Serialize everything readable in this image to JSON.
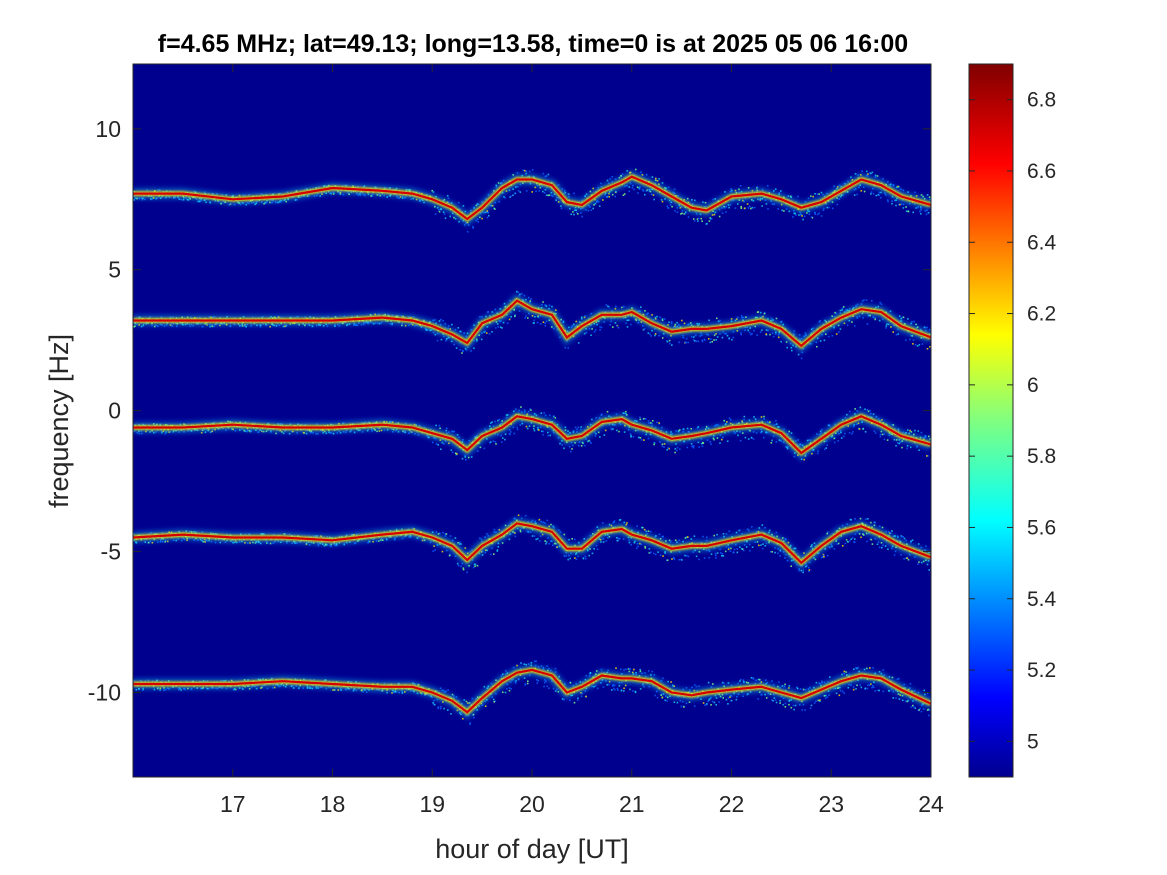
{
  "chart_data": {
    "type": "heatmap",
    "title": "f=4.65 MHz;  lat=49.13; long=13.58, time=0 is at 2025 05 06 16:00",
    "xlabel": "hour of day [UT]",
    "ylabel": "frequency [Hz]",
    "xlim": [
      16,
      24
    ],
    "ylim": [
      -13,
      12.3
    ],
    "x_ticks": [
      17,
      18,
      19,
      20,
      21,
      22,
      23,
      24
    ],
    "x_tick_labels": [
      "17",
      "18",
      "19",
      "20",
      "21",
      "22",
      "23",
      "24"
    ],
    "y_ticks": [
      10,
      5,
      0,
      -5,
      -10
    ],
    "y_tick_labels": [
      "10",
      "5",
      "0",
      "-5",
      "-10"
    ],
    "colormap": "jet",
    "colorbar": {
      "range": [
        4.9,
        6.9
      ],
      "ticks": [
        6.8,
        6.6,
        6.4,
        6.2,
        6,
        5.8,
        5.6,
        5.4,
        5.2,
        5
      ],
      "tick_labels": [
        "6.8",
        "6.6",
        "6.4",
        "6.2",
        "6",
        "5.8",
        "5.6",
        "5.4",
        "5.2",
        "5"
      ],
      "placement": "right"
    },
    "background_level": 4.9,
    "traces": [
      {
        "offset": 7.7,
        "x": [
          16.0,
          16.5,
          17.0,
          17.5,
          18.0,
          18.5,
          18.8,
          19.0,
          19.2,
          19.35,
          19.5,
          19.7,
          19.85,
          20.0,
          20.2,
          20.35,
          20.5,
          20.7,
          20.9,
          21.0,
          21.2,
          21.4,
          21.6,
          21.75,
          22.0,
          22.3,
          22.5,
          22.7,
          22.9,
          23.1,
          23.3,
          23.5,
          23.7,
          24.0
        ],
        "y": [
          7.7,
          7.7,
          7.5,
          7.6,
          7.9,
          7.8,
          7.7,
          7.5,
          7.2,
          6.8,
          7.2,
          7.9,
          8.2,
          8.2,
          8.0,
          7.4,
          7.3,
          7.8,
          8.1,
          8.3,
          8.0,
          7.6,
          7.2,
          7.1,
          7.6,
          7.7,
          7.5,
          7.2,
          7.4,
          7.8,
          8.2,
          8.0,
          7.6,
          7.3
        ]
      },
      {
        "offset": 3.3,
        "x": [
          16.0,
          16.5,
          17.0,
          17.5,
          18.0,
          18.5,
          18.8,
          19.0,
          19.2,
          19.35,
          19.5,
          19.7,
          19.85,
          20.0,
          20.2,
          20.35,
          20.5,
          20.7,
          20.9,
          21.0,
          21.2,
          21.4,
          21.6,
          21.75,
          22.0,
          22.3,
          22.5,
          22.7,
          22.9,
          23.1,
          23.3,
          23.5,
          23.7,
          24.0
        ],
        "y": [
          3.2,
          3.2,
          3.2,
          3.2,
          3.2,
          3.3,
          3.2,
          3.0,
          2.7,
          2.4,
          3.1,
          3.4,
          3.9,
          3.6,
          3.4,
          2.6,
          3.0,
          3.4,
          3.4,
          3.5,
          3.1,
          2.8,
          2.9,
          2.9,
          3.0,
          3.2,
          2.9,
          2.3,
          2.9,
          3.3,
          3.6,
          3.5,
          3.0,
          2.6
        ]
      },
      {
        "offset": -0.6,
        "x": [
          16.0,
          16.5,
          17.0,
          17.5,
          18.0,
          18.5,
          18.8,
          19.0,
          19.2,
          19.35,
          19.5,
          19.7,
          19.85,
          20.0,
          20.2,
          20.35,
          20.5,
          20.7,
          20.9,
          21.0,
          21.2,
          21.4,
          21.6,
          21.75,
          22.0,
          22.3,
          22.5,
          22.7,
          22.9,
          23.1,
          23.3,
          23.5,
          23.7,
          24.0
        ],
        "y": [
          -0.6,
          -0.6,
          -0.5,
          -0.6,
          -0.6,
          -0.5,
          -0.6,
          -0.8,
          -1.0,
          -1.4,
          -0.9,
          -0.6,
          -0.2,
          -0.3,
          -0.5,
          -1.0,
          -0.9,
          -0.4,
          -0.3,
          -0.5,
          -0.7,
          -1.0,
          -0.9,
          -0.8,
          -0.6,
          -0.5,
          -0.8,
          -1.5,
          -1.0,
          -0.5,
          -0.2,
          -0.5,
          -0.9,
          -1.2
        ]
      },
      {
        "offset": -4.5,
        "x": [
          16.0,
          16.5,
          17.0,
          17.5,
          18.0,
          18.5,
          18.8,
          19.0,
          19.2,
          19.35,
          19.5,
          19.7,
          19.85,
          20.0,
          20.2,
          20.35,
          20.5,
          20.7,
          20.9,
          21.0,
          21.2,
          21.4,
          21.6,
          21.75,
          22.0,
          22.3,
          22.5,
          22.7,
          22.9,
          23.1,
          23.3,
          23.5,
          23.7,
          24.0
        ],
        "y": [
          -4.5,
          -4.4,
          -4.5,
          -4.5,
          -4.6,
          -4.4,
          -4.3,
          -4.5,
          -4.8,
          -5.3,
          -4.8,
          -4.4,
          -4.0,
          -4.1,
          -4.3,
          -4.9,
          -4.9,
          -4.3,
          -4.2,
          -4.4,
          -4.6,
          -4.9,
          -4.8,
          -4.8,
          -4.6,
          -4.4,
          -4.7,
          -5.4,
          -4.8,
          -4.3,
          -4.1,
          -4.4,
          -4.8,
          -5.2
        ]
      },
      {
        "offset": -9.7,
        "x": [
          16.0,
          16.5,
          17.0,
          17.5,
          18.0,
          18.5,
          18.8,
          19.0,
          19.2,
          19.35,
          19.5,
          19.7,
          19.85,
          20.0,
          20.2,
          20.35,
          20.5,
          20.7,
          20.9,
          21.0,
          21.2,
          21.4,
          21.6,
          21.75,
          22.0,
          22.3,
          22.5,
          22.7,
          22.9,
          23.1,
          23.3,
          23.5,
          23.7,
          24.0
        ],
        "y": [
          -9.7,
          -9.7,
          -9.7,
          -9.6,
          -9.7,
          -9.8,
          -9.8,
          -10.0,
          -10.3,
          -10.7,
          -10.2,
          -9.6,
          -9.3,
          -9.2,
          -9.4,
          -10.0,
          -9.8,
          -9.4,
          -9.5,
          -9.5,
          -9.6,
          -10.0,
          -10.1,
          -10.0,
          -9.9,
          -9.8,
          -10.0,
          -10.2,
          -9.9,
          -9.6,
          -9.4,
          -9.5,
          -9.9,
          -10.4
        ]
      }
    ]
  }
}
